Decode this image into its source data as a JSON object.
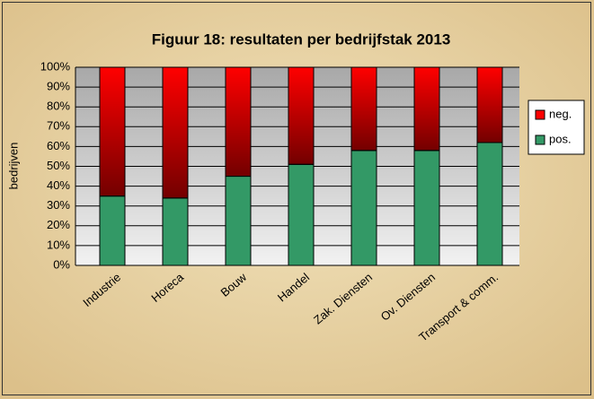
{
  "chart_data": {
    "type": "stacked_bar",
    "title": "Figuur 18: resultaten per bedrijfstak 2013",
    "y_label": "bedrijven",
    "categories": [
      "Industrie",
      "Horeca",
      "Bouw",
      "Handel",
      "Zak. Diensten",
      "Ov. Diensten",
      "Transport & comm."
    ],
    "series": [
      {
        "name": "pos.",
        "color": "#339966",
        "values": [
          35,
          34,
          45,
          51,
          58,
          58,
          62
        ]
      },
      {
        "name": "neg.",
        "color": "#ff0000",
        "values": [
          65,
          66,
          55,
          49,
          42,
          42,
          38
        ]
      }
    ],
    "ylim": [
      0,
      100
    ],
    "yticks": [
      {
        "value": 0,
        "label": "0%"
      },
      {
        "value": 10,
        "label": "10%"
      },
      {
        "value": 20,
        "label": "20%"
      },
      {
        "value": 30,
        "label": "30%"
      },
      {
        "value": 40,
        "label": "40%"
      },
      {
        "value": 50,
        "label": "50%"
      },
      {
        "value": 60,
        "label": "60%"
      },
      {
        "value": 70,
        "label": "70%"
      },
      {
        "value": 80,
        "label": "80%"
      },
      {
        "value": 90,
        "label": "90%"
      },
      {
        "value": 100,
        "label": "100%"
      }
    ],
    "grid": true,
    "legend": "right"
  }
}
